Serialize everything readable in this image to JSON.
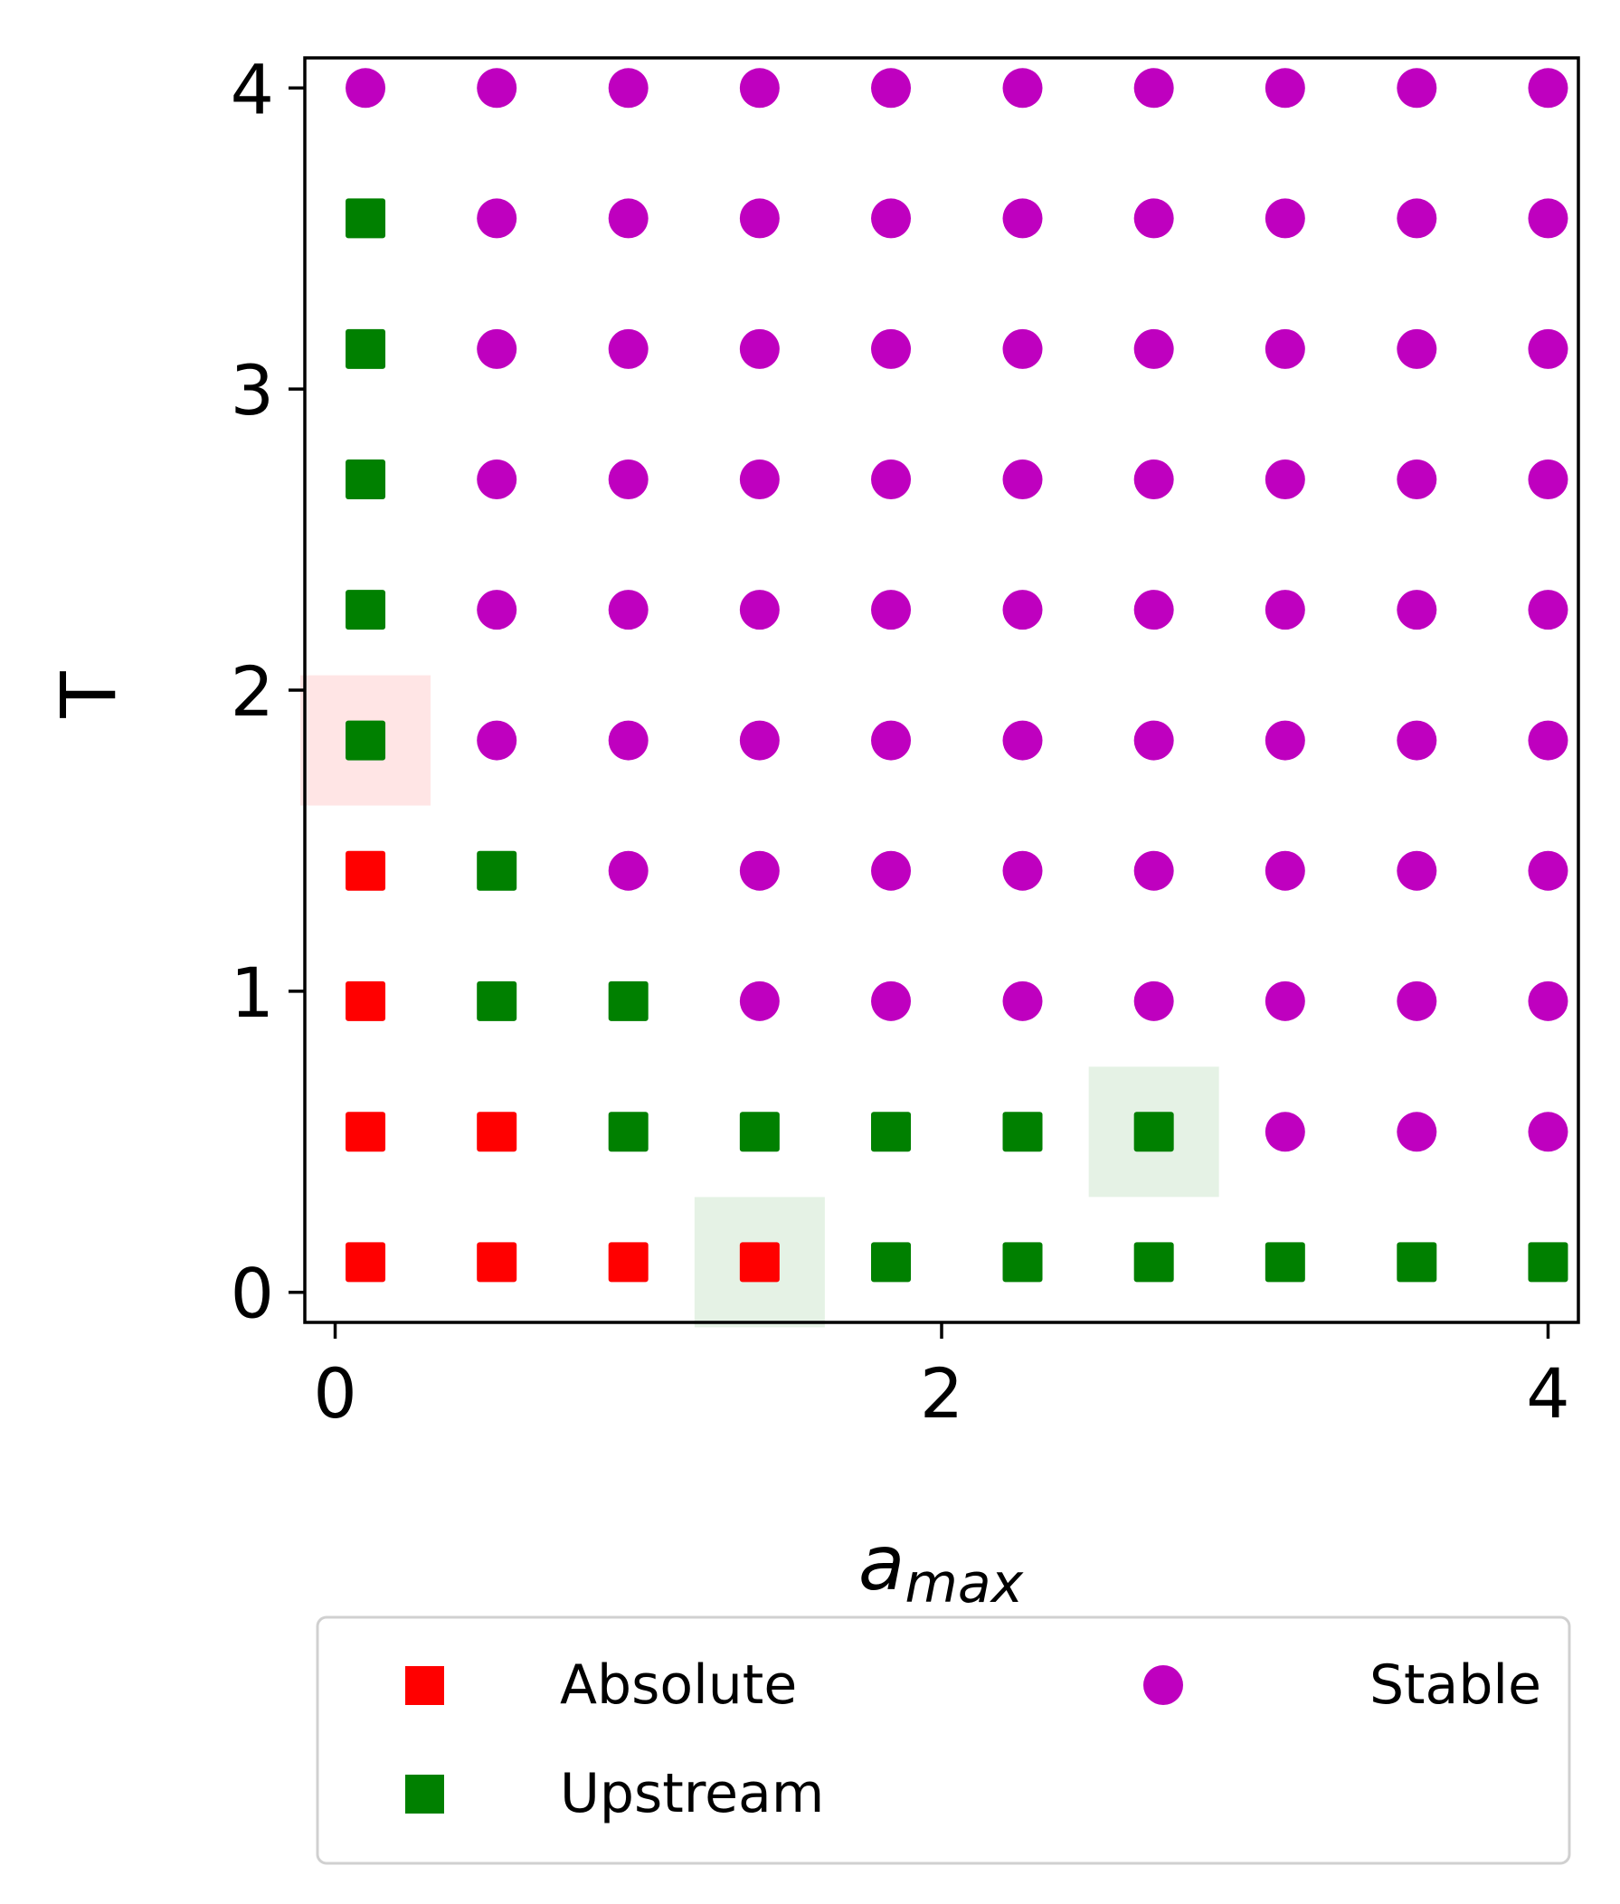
{
  "chart_data": {
    "type": "scatter",
    "xlabel": "a",
    "xlabel_sub": "max",
    "ylabel": "T",
    "xlim": [
      -0.1,
      4.1
    ],
    "ylim": [
      -0.1,
      4.1
    ],
    "xticks": [
      0,
      2,
      4
    ],
    "yticks": [
      0,
      1,
      2,
      3,
      4
    ],
    "grid": false,
    "legend_position": "bottom",
    "colors": {
      "Absolute": "#ff0000",
      "Upstream": "#008000",
      "Stable": "#bf00bf"
    },
    "series": [
      {
        "name": "Absolute",
        "marker": "square",
        "points": [
          [
            0.1,
            0.1
          ],
          [
            0.533,
            0.1
          ],
          [
            0.967,
            0.1
          ],
          [
            1.4,
            0.1
          ],
          [
            0.1,
            0.533
          ],
          [
            0.533,
            0.533
          ],
          [
            0.1,
            0.967
          ],
          [
            0.1,
            1.4
          ]
        ]
      },
      {
        "name": "Upstream",
        "marker": "square",
        "points": [
          [
            1.833,
            0.1
          ],
          [
            2.267,
            0.1
          ],
          [
            2.7,
            0.1
          ],
          [
            3.133,
            0.1
          ],
          [
            3.567,
            0.1
          ],
          [
            4.0,
            0.1
          ],
          [
            0.967,
            0.533
          ],
          [
            1.4,
            0.533
          ],
          [
            1.833,
            0.533
          ],
          [
            2.267,
            0.533
          ],
          [
            2.7,
            0.533
          ],
          [
            0.533,
            0.967
          ],
          [
            0.967,
            0.967
          ],
          [
            0.533,
            1.4
          ],
          [
            0.1,
            1.833
          ],
          [
            0.1,
            2.267
          ],
          [
            0.1,
            2.7
          ],
          [
            0.1,
            3.133
          ],
          [
            0.1,
            3.567
          ]
        ]
      },
      {
        "name": "Stable",
        "marker": "circle",
        "points": [
          [
            3.133,
            0.533
          ],
          [
            3.567,
            0.533
          ],
          [
            4.0,
            0.533
          ],
          [
            1.4,
            0.967
          ],
          [
            1.833,
            0.967
          ],
          [
            2.267,
            0.967
          ],
          [
            2.7,
            0.967
          ],
          [
            3.133,
            0.967
          ],
          [
            3.567,
            0.967
          ],
          [
            4.0,
            0.967
          ],
          [
            0.967,
            1.4
          ],
          [
            1.4,
            1.4
          ],
          [
            1.833,
            1.4
          ],
          [
            2.267,
            1.4
          ],
          [
            2.7,
            1.4
          ],
          [
            3.133,
            1.4
          ],
          [
            3.567,
            1.4
          ],
          [
            4.0,
            1.4
          ],
          [
            0.533,
            1.833
          ],
          [
            0.967,
            1.833
          ],
          [
            1.4,
            1.833
          ],
          [
            1.833,
            1.833
          ],
          [
            2.267,
            1.833
          ],
          [
            2.7,
            1.833
          ],
          [
            3.133,
            1.833
          ],
          [
            3.567,
            1.833
          ],
          [
            4.0,
            1.833
          ],
          [
            0.533,
            2.267
          ],
          [
            0.967,
            2.267
          ],
          [
            1.4,
            2.267
          ],
          [
            1.833,
            2.267
          ],
          [
            2.267,
            2.267
          ],
          [
            2.7,
            2.267
          ],
          [
            3.133,
            2.267
          ],
          [
            3.567,
            2.267
          ],
          [
            4.0,
            2.267
          ],
          [
            0.533,
            2.7
          ],
          [
            0.967,
            2.7
          ],
          [
            1.4,
            2.7
          ],
          [
            1.833,
            2.7
          ],
          [
            2.267,
            2.7
          ],
          [
            2.7,
            2.7
          ],
          [
            3.133,
            2.7
          ],
          [
            3.567,
            2.7
          ],
          [
            4.0,
            2.7
          ],
          [
            0.533,
            3.133
          ],
          [
            0.967,
            3.133
          ],
          [
            1.4,
            3.133
          ],
          [
            1.833,
            3.133
          ],
          [
            2.267,
            3.133
          ],
          [
            2.7,
            3.133
          ],
          [
            3.133,
            3.133
          ],
          [
            3.567,
            3.133
          ],
          [
            4.0,
            3.133
          ],
          [
            0.533,
            3.567
          ],
          [
            0.967,
            3.567
          ],
          [
            1.4,
            3.567
          ],
          [
            1.833,
            3.567
          ],
          [
            2.267,
            3.567
          ],
          [
            2.7,
            3.567
          ],
          [
            3.133,
            3.567
          ],
          [
            3.567,
            3.567
          ],
          [
            4.0,
            3.567
          ],
          [
            0.1,
            4.0
          ],
          [
            0.533,
            4.0
          ],
          [
            0.967,
            4.0
          ],
          [
            1.4,
            4.0
          ],
          [
            1.833,
            4.0
          ],
          [
            2.267,
            4.0
          ],
          [
            2.7,
            4.0
          ],
          [
            3.133,
            4.0
          ],
          [
            3.567,
            4.0
          ],
          [
            4.0,
            4.0
          ]
        ]
      }
    ],
    "highlights": [
      {
        "center": [
          0.1,
          1.833
        ],
        "color": "#ffcccc"
      },
      {
        "center": [
          1.4,
          0.1
        ],
        "color": "#cce6cc"
      },
      {
        "center": [
          2.7,
          0.533
        ],
        "color": "#cce6cc"
      }
    ],
    "legend": [
      {
        "label": "Absolute",
        "marker": "square"
      },
      {
        "label": "Upstream",
        "marker": "square"
      },
      {
        "label": "Stable",
        "marker": "circle"
      }
    ]
  }
}
